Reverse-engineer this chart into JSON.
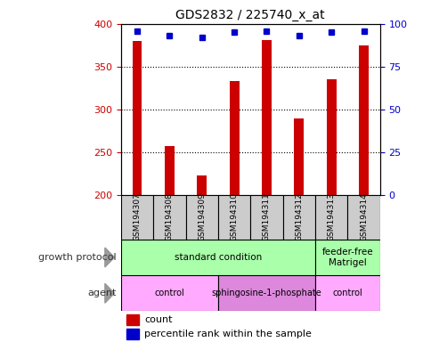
{
  "title": "GDS2832 / 225740_x_at",
  "samples": [
    "GSM194307",
    "GSM194308",
    "GSM194309",
    "GSM194310",
    "GSM194311",
    "GSM194312",
    "GSM194313",
    "GSM194314"
  ],
  "counts": [
    380,
    257,
    223,
    333,
    381,
    289,
    335,
    375
  ],
  "percentile_ranks": [
    96,
    93,
    92,
    95,
    96,
    93,
    95,
    96
  ],
  "ylim_left": [
    200,
    400
  ],
  "ylim_right": [
    0,
    100
  ],
  "yticks_left": [
    200,
    250,
    300,
    350,
    400
  ],
  "yticks_right": [
    0,
    25,
    50,
    75,
    100
  ],
  "bar_color": "#cc0000",
  "dot_color": "#0000cc",
  "bar_width": 0.3,
  "growth_protocol_segments": [
    {
      "text": "standard condition",
      "start": 0,
      "end": 6,
      "color": "#aaffaa"
    },
    {
      "text": "feeder-free\nMatrigel",
      "start": 6,
      "end": 8,
      "color": "#aaffaa"
    }
  ],
  "agent_segments": [
    {
      "text": "control",
      "start": 0,
      "end": 3,
      "color": "#ffaaff"
    },
    {
      "text": "sphingosine-1-phosphate",
      "start": 3,
      "end": 6,
      "color": "#dd88dd"
    },
    {
      "text": "control",
      "start": 6,
      "end": 8,
      "color": "#ffaaff"
    }
  ],
  "sample_box_color": "#cccccc",
  "left_label_color": "#333333",
  "left_ytick_color": "#cc0000",
  "right_ytick_color": "#0000cc",
  "legend_count_color": "#cc0000",
  "legend_dot_color": "#0000cc"
}
